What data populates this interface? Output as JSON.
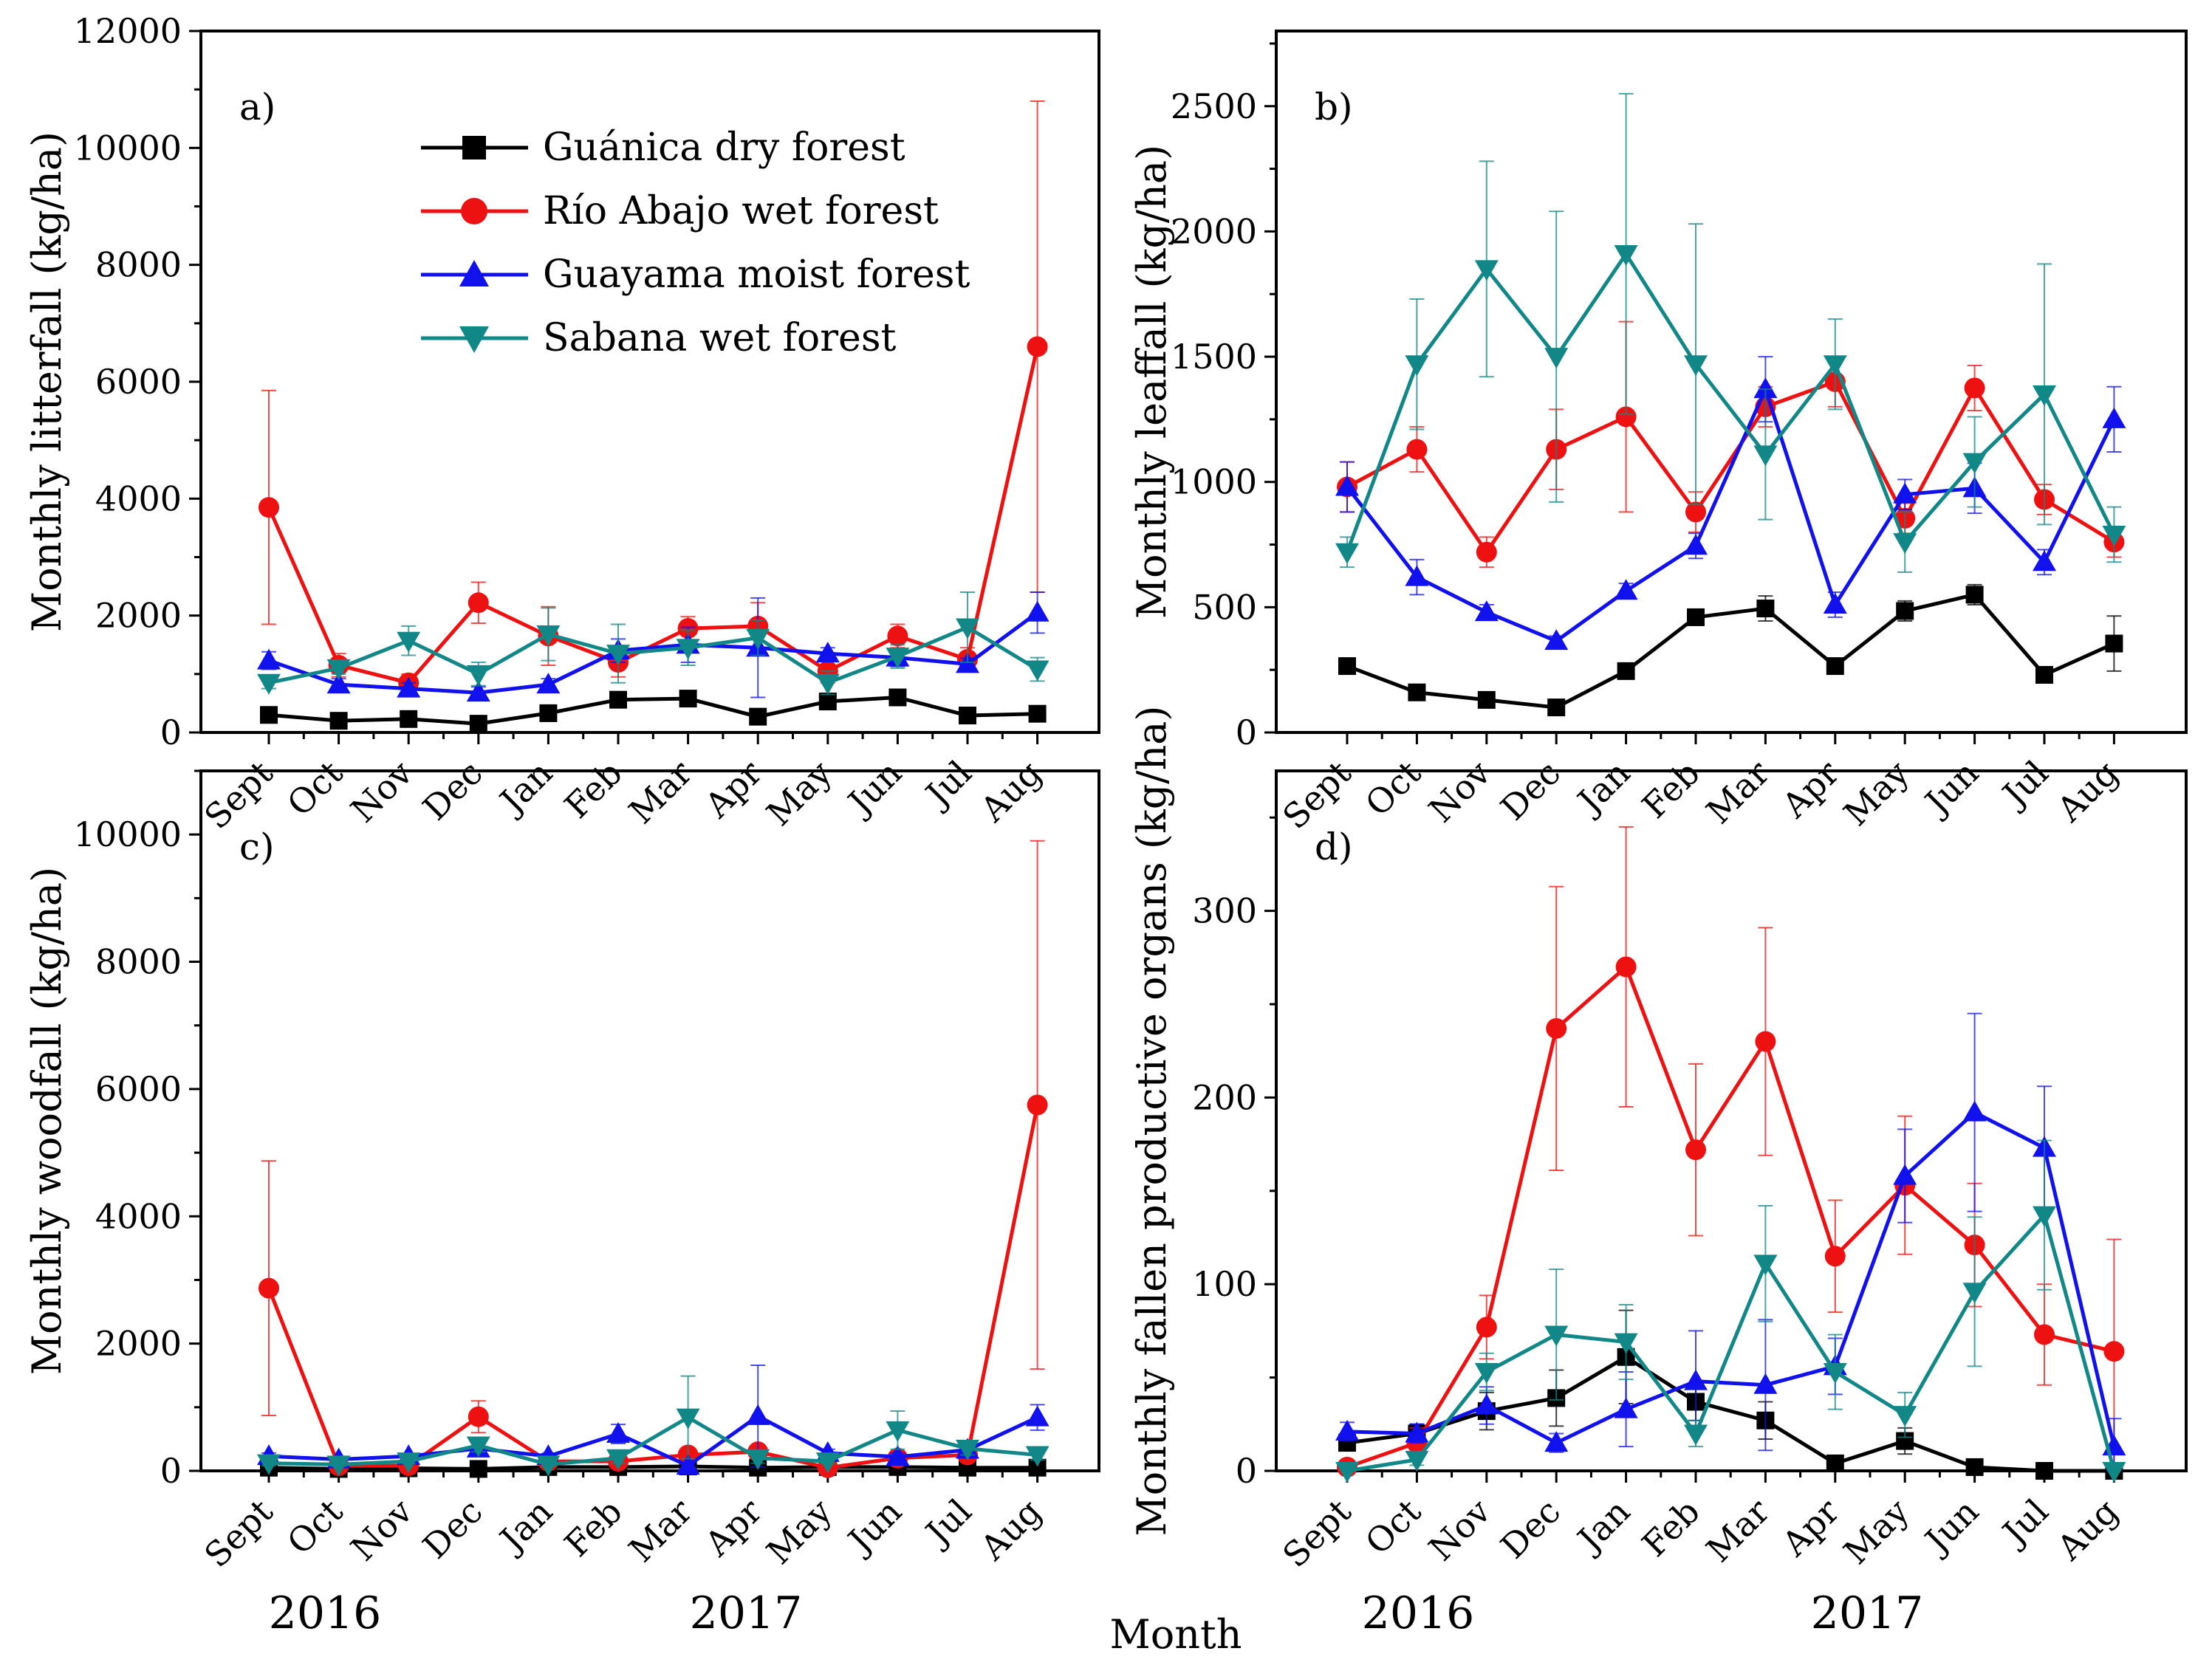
{
  "figure": {
    "x_axis_title": "Month",
    "year_labels": [
      "2016",
      "2017"
    ],
    "months": [
      "Sept",
      "Oct",
      "Nov",
      "Dec",
      "Jan",
      "Feb",
      "Mar",
      "Apr",
      "May",
      "Jun",
      "Jul",
      "Aug"
    ]
  },
  "legend": [
    {
      "name": "Guánica dry forest",
      "color": "#000000",
      "marker": "square"
    },
    {
      "name": "Río Abajo wet forest",
      "color": "#ee1111",
      "marker": "circle"
    },
    {
      "name": "Guayama moist forest",
      "color": "#1111ee",
      "marker": "triangle-up"
    },
    {
      "name": "Sabana wet forest",
      "color": "#128787",
      "marker": "triangle-down"
    }
  ],
  "chart_data": [
    {
      "type": "line",
      "panel": "a)",
      "ylabel": "Monthly litterfall (kg/ha)",
      "xlabel": "Month",
      "ylim": [
        0,
        12000
      ],
      "yticks": [
        0,
        2000,
        4000,
        6000,
        8000,
        10000,
        12000
      ],
      "categories": [
        "Sept",
        "Oct",
        "Nov",
        "Dec",
        "Jan",
        "Feb",
        "Mar",
        "Apr",
        "May",
        "Jun",
        "Jul",
        "Aug"
      ],
      "series": [
        {
          "name": "Guánica dry forest",
          "values": [
            300,
            200,
            230,
            150,
            330,
            560,
            580,
            270,
            530,
            600,
            290,
            320
          ],
          "errors": [
            60,
            40,
            40,
            30,
            60,
            80,
            80,
            50,
            80,
            80,
            50,
            60
          ]
        },
        {
          "name": "Río Abajo wet forest",
          "values": [
            3850,
            1150,
            850,
            2220,
            1650,
            1200,
            1780,
            1820,
            1050,
            1650,
            1250,
            6600
          ],
          "errors": [
            2000,
            200,
            150,
            350,
            500,
            250,
            200,
            400,
            200,
            200,
            200,
            4200
          ]
        },
        {
          "name": "Guayama moist forest",
          "values": [
            1230,
            820,
            750,
            680,
            820,
            1400,
            1500,
            1450,
            1350,
            1280,
            1170,
            2050
          ],
          "errors": [
            150,
            100,
            100,
            100,
            100,
            200,
            300,
            850,
            100,
            150,
            100,
            350
          ]
        },
        {
          "name": "Sabana wet forest",
          "values": [
            850,
            1100,
            1570,
            1000,
            1680,
            1350,
            1450,
            1620,
            850,
            1300,
            1800,
            1080
          ],
          "errors": [
            100,
            100,
            250,
            200,
            450,
            500,
            300,
            300,
            200,
            200,
            600,
            200
          ]
        }
      ]
    },
    {
      "type": "line",
      "panel": "b)",
      "ylabel": "Monthly leaffall (kg/ha)",
      "xlabel": "Month",
      "ylim": [
        0,
        2800
      ],
      "yticks": [
        0,
        500,
        1000,
        1500,
        2000,
        2500
      ],
      "categories": [
        "Sept",
        "Oct",
        "Nov",
        "Dec",
        "Jan",
        "Feb",
        "Mar",
        "Apr",
        "May",
        "Jun",
        "Jul",
        "Aug"
      ],
      "series": [
        {
          "name": "Guánica dry forest",
          "values": [
            265,
            160,
            130,
            100,
            245,
            460,
            495,
            265,
            485,
            550,
            230,
            355
          ],
          "errors": [
            15,
            15,
            15,
            15,
            20,
            30,
            50,
            20,
            40,
            40,
            20,
            110
          ]
        },
        {
          "name": "Río Abajo wet forest",
          "values": [
            980,
            1130,
            720,
            1130,
            1260,
            880,
            1300,
            1400,
            855,
            1375,
            930,
            760
          ],
          "errors": [
            100,
            90,
            60,
            160,
            380,
            80,
            80,
            100,
            60,
            90,
            60,
            60
          ]
        },
        {
          "name": "Guayama moist forest",
          "values": [
            980,
            620,
            480,
            365,
            565,
            745,
            1370,
            510,
            950,
            975,
            680,
            1250
          ],
          "errors": [
            100,
            70,
            30,
            20,
            30,
            50,
            130,
            50,
            60,
            100,
            50,
            130
          ]
        },
        {
          "name": "Sabana wet forest",
          "values": [
            720,
            1470,
            1850,
            1500,
            1910,
            1470,
            1110,
            1470,
            760,
            1080,
            1350,
            790
          ],
          "errors": [
            60,
            260,
            430,
            580,
            640,
            560,
            260,
            180,
            120,
            180,
            520,
            110
          ]
        }
      ]
    },
    {
      "type": "line",
      "panel": "c)",
      "ylabel": "Monthly woodfall (kg/ha)",
      "xlabel": "Month",
      "ylim": [
        0,
        11000
      ],
      "yticks": [
        0,
        2000,
        4000,
        6000,
        8000,
        10000
      ],
      "categories": [
        "Sept",
        "Oct",
        "Nov",
        "Dec",
        "Jan",
        "Feb",
        "Mar",
        "Apr",
        "May",
        "Jun",
        "Jul",
        "Aug"
      ],
      "series": [
        {
          "name": "Guánica dry forest",
          "values": [
            50,
            30,
            40,
            30,
            60,
            60,
            70,
            50,
            60,
            60,
            50,
            50
          ],
          "errors": [
            20,
            10,
            10,
            10,
            20,
            20,
            20,
            20,
            20,
            20,
            20,
            20
          ]
        },
        {
          "name": "Río Abajo wet forest",
          "values": [
            2870,
            80,
            80,
            850,
            150,
            150,
            250,
            300,
            50,
            200,
            250,
            5750
          ],
          "errors": [
            2000,
            30,
            30,
            250,
            50,
            50,
            80,
            100,
            30,
            50,
            80,
            4150
          ]
        },
        {
          "name": "Guayama moist forest",
          "values": [
            230,
            180,
            230,
            350,
            230,
            580,
            80,
            860,
            280,
            220,
            330,
            840
          ],
          "errors": [
            50,
            40,
            40,
            80,
            40,
            150,
            30,
            800,
            60,
            60,
            60,
            200
          ]
        },
        {
          "name": "Sabana wet forest",
          "values": [
            120,
            100,
            150,
            400,
            100,
            200,
            840,
            200,
            150,
            640,
            350,
            250
          ],
          "errors": [
            40,
            30,
            40,
            100,
            30,
            80,
            650,
            80,
            40,
            300,
            100,
            80
          ]
        }
      ]
    },
    {
      "type": "line",
      "panel": "d)",
      "ylabel": "Monthly fallen productive organs (kg/ha)",
      "xlabel": "Month",
      "ylim": [
        0,
        375
      ],
      "yticks": [
        0,
        100,
        200,
        300
      ],
      "categories": [
        "Sept",
        "Oct",
        "Nov",
        "Dec",
        "Jan",
        "Feb",
        "Mar",
        "Apr",
        "May",
        "Jun",
        "Jul",
        "Aug"
      ],
      "series": [
        {
          "name": "Guánica dry forest",
          "values": [
            15,
            20,
            32,
            39,
            61,
            37,
            27,
            4,
            16,
            2,
            0,
            0
          ],
          "errors": [
            4,
            5,
            10,
            15,
            25,
            10,
            10,
            3,
            7,
            2,
            0,
            0
          ]
        },
        {
          "name": "Río Abajo wet forest",
          "values": [
            2,
            15,
            77,
            237,
            270,
            172,
            230,
            115,
            153,
            121,
            73,
            64
          ],
          "errors": [
            2,
            8,
            17,
            76,
            75,
            46,
            61,
            30,
            37,
            33,
            27,
            60
          ]
        },
        {
          "name": "Guayama moist forest",
          "values": [
            21,
            20,
            35,
            15,
            33,
            48,
            46,
            56,
            158,
            192,
            173,
            13
          ],
          "errors": [
            5,
            5,
            10,
            5,
            20,
            27,
            35,
            15,
            25,
            53,
            33,
            15
          ]
        },
        {
          "name": "Sabana wet forest",
          "values": [
            0,
            6,
            53,
            73,
            69,
            20,
            111,
            53,
            30,
            96,
            137,
            0
          ],
          "errors": [
            0,
            3,
            10,
            35,
            20,
            7,
            31,
            20,
            12,
            40,
            40,
            0
          ]
        }
      ]
    }
  ]
}
